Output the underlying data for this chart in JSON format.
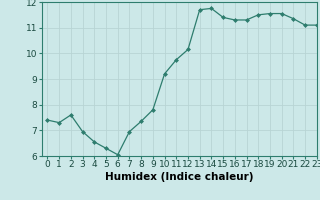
{
  "x": [
    0,
    1,
    2,
    3,
    4,
    5,
    6,
    7,
    8,
    9,
    10,
    11,
    12,
    13,
    14,
    15,
    16,
    17,
    18,
    19,
    20,
    21,
    22,
    23
  ],
  "y": [
    7.4,
    7.3,
    7.6,
    6.95,
    6.55,
    6.3,
    6.05,
    6.95,
    7.35,
    7.8,
    9.2,
    9.75,
    10.15,
    11.7,
    11.75,
    11.4,
    11.3,
    11.3,
    11.5,
    11.55,
    11.55,
    11.35,
    11.1,
    11.1
  ],
  "xlabel": "Humidex (Indice chaleur)",
  "ylim": [
    6,
    12
  ],
  "xlim": [
    -0.5,
    23
  ],
  "yticks": [
    6,
    7,
    8,
    9,
    10,
    11,
    12
  ],
  "xticks": [
    0,
    1,
    2,
    3,
    4,
    5,
    6,
    7,
    8,
    9,
    10,
    11,
    12,
    13,
    14,
    15,
    16,
    17,
    18,
    19,
    20,
    21,
    22,
    23
  ],
  "line_color": "#2e7d6e",
  "marker": "D",
  "marker_size": 2.0,
  "bg_color": "#cce8e8",
  "grid_color": "#b8d4d4",
  "tick_label_fontsize": 6.5,
  "xlabel_fontsize": 7.5
}
